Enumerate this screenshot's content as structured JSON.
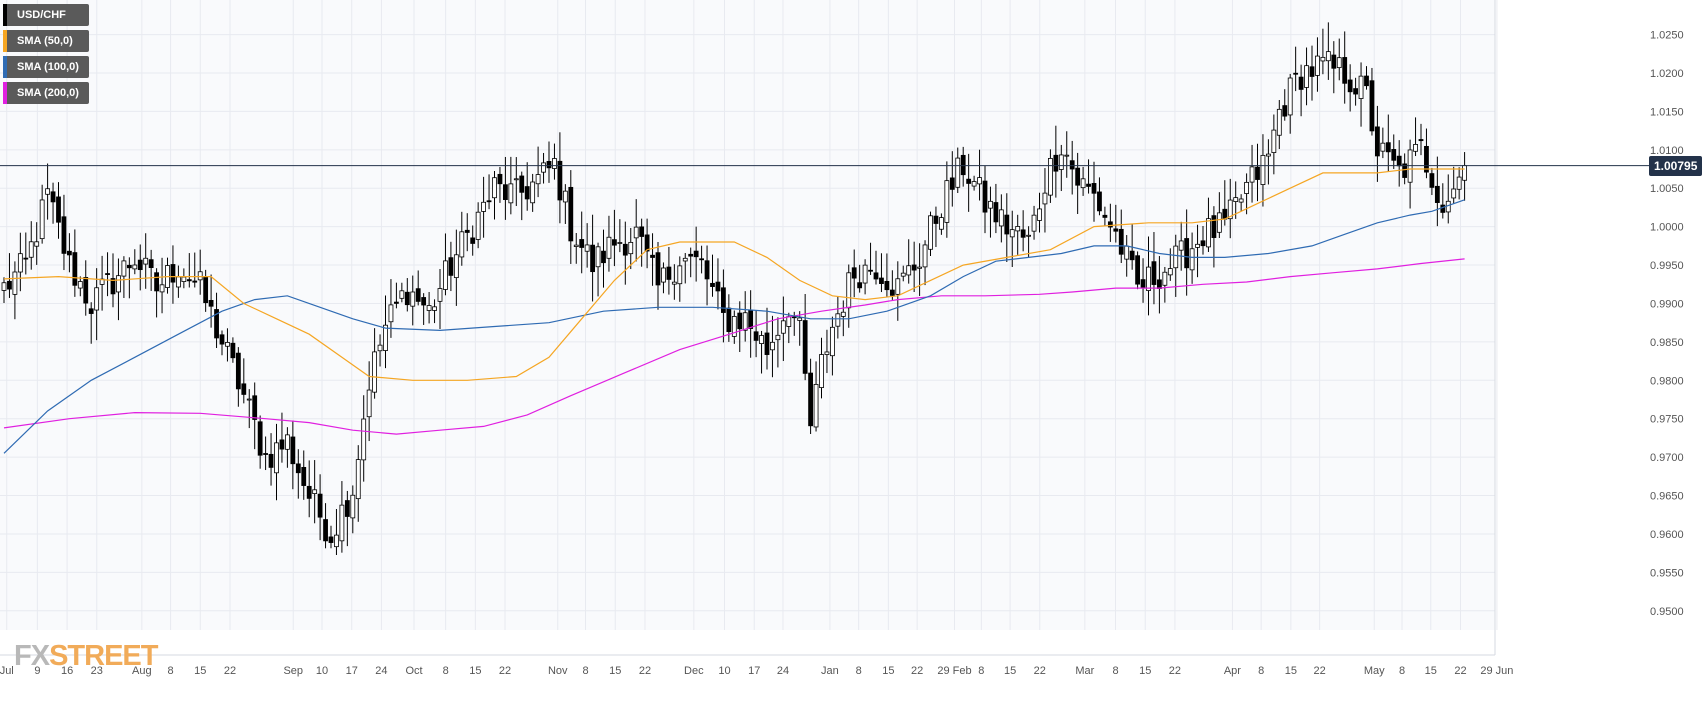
{
  "chart_data": {
    "type": "candlestick",
    "symbol": "USD/CHF",
    "last_price": 1.00795,
    "last_price_label": "1.00795",
    "ylim": [
      0.9475,
      1.0295
    ],
    "y_ticks": [
      "0.9500",
      "0.9550",
      "0.9600",
      "0.9650",
      "0.9700",
      "0.9750",
      "0.9800",
      "0.9850",
      "0.9900",
      "0.9950",
      "1.0000",
      "1.0050",
      "1.0100",
      "1.0150",
      "1.0200",
      "1.0250"
    ],
    "x_ticks": [
      "Jul",
      "9",
      "16",
      "23",
      "Aug",
      "8",
      "15",
      "22",
      "Sep",
      "10",
      "17",
      "24",
      "Oct",
      "8",
      "15",
      "22",
      "Nov",
      "8",
      "15",
      "22",
      "Dec",
      "10",
      "17",
      "24",
      "Jan",
      "8",
      "15",
      "22",
      "29 Feb",
      "8",
      "15",
      "22",
      "Mar",
      "8",
      "15",
      "22",
      "Apr",
      "8",
      "15",
      "22",
      "May",
      "8",
      "15",
      "22",
      "29 Jun"
    ],
    "grid": true,
    "legend_position": "top-left",
    "legend": [
      {
        "name": "USD/CHF",
        "color": "#000000"
      },
      {
        "name": "SMA (50,0)",
        "color": "#f5a623"
      },
      {
        "name": "SMA (100,0)",
        "color": "#2f6bb3"
      },
      {
        "name": "SMA (200,0)",
        "color": "#e020e0"
      }
    ],
    "colors": {
      "bull": "#ffffff",
      "bear": "#000000",
      "grid": "#e8eaf0",
      "price_line": "#23324a",
      "sma50": "#f5a623",
      "sma100": "#2f6bb3",
      "sma200": "#e020e0"
    },
    "anchors": [
      [
        0,
        0.992
      ],
      [
        4,
        0.995
      ],
      [
        8,
        1.004
      ],
      [
        12,
        0.995
      ],
      [
        16,
        0.99
      ],
      [
        20,
        0.993
      ],
      [
        24,
        0.996
      ],
      [
        28,
        0.992
      ],
      [
        32,
        0.995
      ],
      [
        36,
        0.992
      ],
      [
        40,
        0.985
      ],
      [
        44,
        0.978
      ],
      [
        48,
        0.97
      ],
      [
        52,
        0.972
      ],
      [
        56,
        0.965
      ],
      [
        60,
        0.96
      ],
      [
        64,
        0.966
      ],
      [
        67,
        0.98
      ],
      [
        70,
        0.987
      ],
      [
        74,
        0.992
      ],
      [
        78,
        0.989
      ],
      [
        82,
        0.995
      ],
      [
        86,
        1.0
      ],
      [
        90,
        1.005
      ],
      [
        94,
        1.004
      ],
      [
        98,
        1.006
      ],
      [
        101,
        1.008
      ],
      [
        104,
        1.0
      ],
      [
        108,
        0.995
      ],
      [
        112,
        0.998
      ],
      [
        116,
        0.999
      ],
      [
        120,
        0.992
      ],
      [
        124,
        0.996
      ],
      [
        128,
        0.995
      ],
      [
        132,
        0.988
      ],
      [
        136,
        0.988
      ],
      [
        140,
        0.984
      ],
      [
        144,
        0.99
      ],
      [
        146,
        0.986
      ],
      [
        148,
        0.974
      ],
      [
        150,
        0.982
      ],
      [
        152,
        0.987
      ],
      [
        156,
        0.994
      ],
      [
        160,
        0.995
      ],
      [
        164,
        0.992
      ],
      [
        168,
        0.996
      ],
      [
        172,
        1.003
      ],
      [
        176,
        1.008
      ],
      [
        180,
        1.003
      ],
      [
        184,
        1.0
      ],
      [
        188,
        0.998
      ],
      [
        191,
        1.006
      ],
      [
        194,
        1.011
      ],
      [
        197,
        1.006
      ],
      [
        200,
        1.004
      ],
      [
        204,
        0.999
      ],
      [
        208,
        0.992
      ],
      [
        212,
        0.994
      ],
      [
        216,
        0.996
      ],
      [
        220,
        0.999
      ],
      [
        224,
        1.0
      ],
      [
        228,
        1.005
      ],
      [
        232,
        1.009
      ],
      [
        234,
        1.015
      ],
      [
        238,
        1.02
      ],
      [
        242,
        1.021
      ],
      [
        246,
        1.02
      ],
      [
        250,
        1.017
      ],
      [
        252,
        1.01
      ],
      [
        256,
        1.007
      ],
      [
        260,
        1.01
      ],
      [
        263,
        1.005
      ],
      [
        264,
        1.003
      ],
      [
        266,
        1.005
      ],
      [
        268,
        1.00795
      ]
    ],
    "sma50": [
      [
        0,
        0.9932
      ],
      [
        10,
        0.9935
      ],
      [
        20,
        0.993
      ],
      [
        30,
        0.9935
      ],
      [
        38,
        0.9935
      ],
      [
        44,
        0.99
      ],
      [
        50,
        0.988
      ],
      [
        56,
        0.986
      ],
      [
        62,
        0.983
      ],
      [
        67,
        0.9805
      ],
      [
        75,
        0.98
      ],
      [
        85,
        0.98
      ],
      [
        94,
        0.9805
      ],
      [
        100,
        0.983
      ],
      [
        106,
        0.988
      ],
      [
        112,
        0.993
      ],
      [
        118,
        0.997
      ],
      [
        124,
        0.998
      ],
      [
        134,
        0.998
      ],
      [
        140,
        0.996
      ],
      [
        146,
        0.993
      ],
      [
        152,
        0.991
      ],
      [
        158,
        0.9905
      ],
      [
        164,
        0.991
      ],
      [
        170,
        0.993
      ],
      [
        176,
        0.995
      ],
      [
        184,
        0.996
      ],
      [
        192,
        0.997
      ],
      [
        200,
        1.0
      ],
      [
        210,
        1.0005
      ],
      [
        218,
        1.0005
      ],
      [
        224,
        1.001
      ],
      [
        230,
        1.003
      ],
      [
        236,
        1.005
      ],
      [
        242,
        1.007
      ],
      [
        246,
        1.007
      ],
      [
        252,
        1.007
      ],
      [
        258,
        1.0075
      ],
      [
        262,
        1.0075
      ],
      [
        268,
        1.0075
      ]
    ],
    "sma100": [
      [
        0,
        0.9705
      ],
      [
        8,
        0.976
      ],
      [
        16,
        0.98
      ],
      [
        24,
        0.983
      ],
      [
        32,
        0.986
      ],
      [
        40,
        0.989
      ],
      [
        46,
        0.9905
      ],
      [
        52,
        0.991
      ],
      [
        58,
        0.9895
      ],
      [
        64,
        0.988
      ],
      [
        70,
        0.9868
      ],
      [
        80,
        0.9865
      ],
      [
        90,
        0.987
      ],
      [
        100,
        0.9875
      ],
      [
        110,
        0.989
      ],
      [
        120,
        0.9895
      ],
      [
        130,
        0.9895
      ],
      [
        140,
        0.989
      ],
      [
        148,
        0.988
      ],
      [
        155,
        0.988
      ],
      [
        162,
        0.989
      ],
      [
        170,
        0.991
      ],
      [
        176,
        0.9935
      ],
      [
        182,
        0.9955
      ],
      [
        188,
        0.996
      ],
      [
        194,
        0.9965
      ],
      [
        200,
        0.9975
      ],
      [
        206,
        0.9975
      ],
      [
        212,
        0.9965
      ],
      [
        218,
        0.996
      ],
      [
        224,
        0.996
      ],
      [
        232,
        0.9965
      ],
      [
        240,
        0.9975
      ],
      [
        246,
        0.999
      ],
      [
        252,
        1.0005
      ],
      [
        258,
        1.0015
      ],
      [
        262,
        1.002
      ],
      [
        268,
        1.0035
      ]
    ],
    "sma200": [
      [
        0,
        0.9738
      ],
      [
        12,
        0.975
      ],
      [
        24,
        0.9758
      ],
      [
        36,
        0.9757
      ],
      [
        48,
        0.975
      ],
      [
        56,
        0.9745
      ],
      [
        64,
        0.9735
      ],
      [
        72,
        0.973
      ],
      [
        80,
        0.9735
      ],
      [
        88,
        0.974
      ],
      [
        96,
        0.9755
      ],
      [
        104,
        0.978
      ],
      [
        114,
        0.981
      ],
      [
        124,
        0.984
      ],
      [
        134,
        0.9862
      ],
      [
        142,
        0.988
      ],
      [
        150,
        0.989
      ],
      [
        158,
        0.9898
      ],
      [
        164,
        0.9905
      ],
      [
        172,
        0.991
      ],
      [
        180,
        0.991
      ],
      [
        190,
        0.9912
      ],
      [
        196,
        0.9915
      ],
      [
        204,
        0.992
      ],
      [
        212,
        0.992
      ],
      [
        220,
        0.9925
      ],
      [
        228,
        0.9928
      ],
      [
        236,
        0.9935
      ],
      [
        244,
        0.994
      ],
      [
        252,
        0.9945
      ],
      [
        260,
        0.9952
      ],
      [
        268,
        0.9958
      ]
    ]
  },
  "branding": {
    "fx": "FX",
    "street": "STREET"
  }
}
